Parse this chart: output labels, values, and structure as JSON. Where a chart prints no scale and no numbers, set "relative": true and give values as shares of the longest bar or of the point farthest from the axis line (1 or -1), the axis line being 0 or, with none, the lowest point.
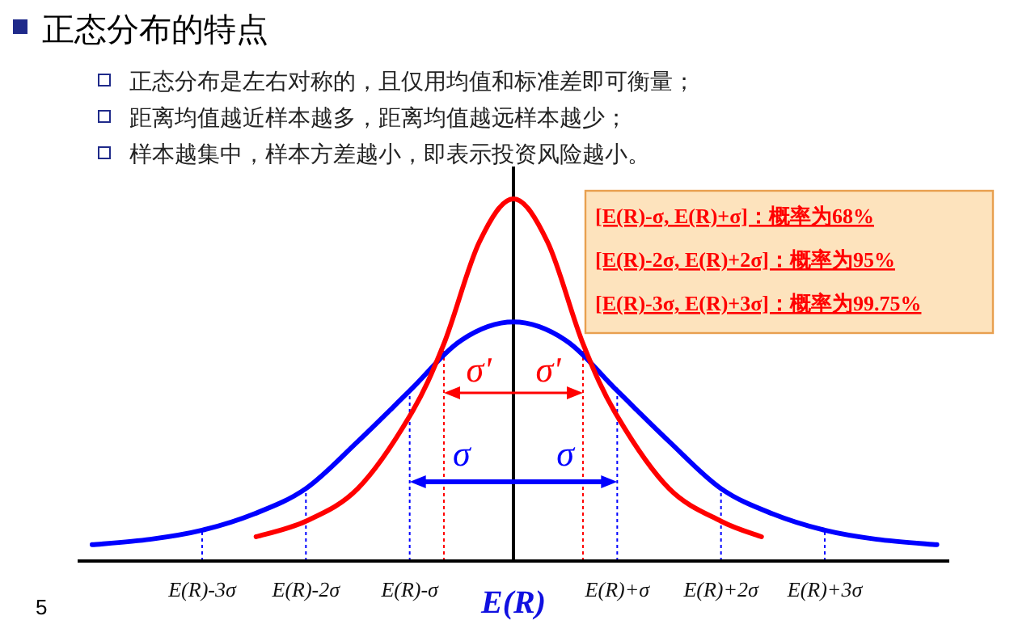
{
  "chart_data": {
    "type": "line",
    "title": "正态分布的特点",
    "annotations": [
      "正态分布是左右对称的，且仅用均值和标准差即可衡量；",
      "距离均值越近样本越多，距离均值越远样本越少；",
      "样本越集中，样本方差越小，即表示投资风险越小。",
      "[E(R)-σ, E(R)+σ]：概率为68%",
      "[E(R)-2σ, E(R)+2σ]：概率为95%",
      "[E(R)-3σ, E(R)+3σ]：概率为99.75%",
      "σ'",
      "σ'",
      "σ",
      "σ",
      "5"
    ],
    "xlabel": "E(R)",
    "relative": true,
    "line_style": "solid",
    "xlim": [
      -4.2,
      4.2
    ],
    "xticks": [
      {
        "value": -3,
        "label": "E(R)-3σ"
      },
      {
        "value": -2,
        "label": "E(R)-2σ"
      },
      {
        "value": -1,
        "label": "E(R)-σ"
      },
      {
        "value": 1,
        "label": "E(R)+σ"
      },
      {
        "value": 2,
        "label": "E(R)+2σ"
      },
      {
        "value": 3,
        "label": "E(R)+3σ"
      }
    ],
    "series": [
      {
        "color": "#0000ff",
        "x": [
          -4.06,
          -3.5,
          -3,
          -2.5,
          -2,
          -1.5,
          -1,
          -0.5,
          0,
          0.5,
          1,
          1.5,
          2,
          2.5,
          3,
          3.5,
          4.08
        ],
        "values": [
          0.045,
          0.06,
          0.085,
          0.13,
          0.2,
          0.33,
          0.47,
          0.61,
          0.66,
          0.61,
          0.47,
          0.33,
          0.2,
          0.13,
          0.085,
          0.06,
          0.045
        ]
      },
      {
        "color": "#ff0000",
        "x": [
          -2.48,
          -2,
          -1.5,
          -1,
          -0.67,
          -0.33,
          0,
          0.33,
          0.67,
          1,
          1.5,
          2,
          2.39
        ],
        "values": [
          0.067,
          0.11,
          0.2,
          0.4,
          0.6,
          0.88,
          1,
          0.88,
          0.6,
          0.4,
          0.2,
          0.11,
          0.067
        ]
      }
    ],
    "ref_lines": [
      {
        "axis": "x",
        "value": 0,
        "color": "#000000",
        "line_style": "solid"
      },
      {
        "axis": "x",
        "value": -3,
        "color": "#0000ff",
        "line_style": "dotted"
      },
      {
        "axis": "x",
        "value": -2,
        "color": "#0000ff",
        "line_style": "dotted"
      },
      {
        "axis": "x",
        "value": -1,
        "color": "#0000ff",
        "line_style": "dotted"
      },
      {
        "axis": "x",
        "value": 1,
        "color": "#0000ff",
        "line_style": "dotted"
      },
      {
        "axis": "x",
        "value": 2,
        "color": "#0000ff",
        "line_style": "dotted"
      },
      {
        "axis": "x",
        "value": 3,
        "color": "#0000ff",
        "line_style": "dotted"
      },
      {
        "axis": "x",
        "value": -0.67,
        "color": "#ff0000",
        "line_style": "dotted"
      },
      {
        "axis": "x",
        "value": 0.67,
        "color": "#ff0000",
        "line_style": "dotted"
      }
    ]
  }
}
